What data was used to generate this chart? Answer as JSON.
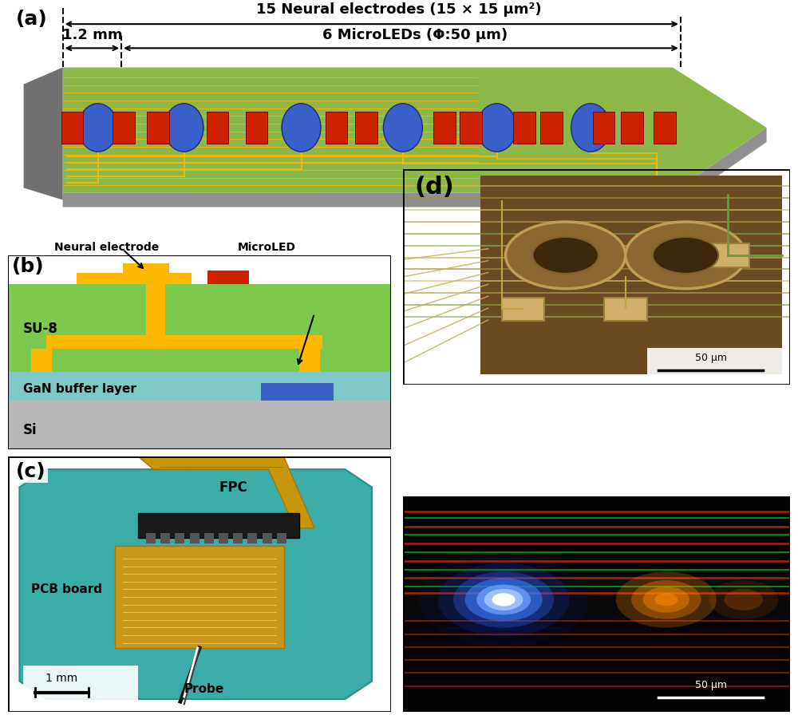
{
  "panel_a_label": "(a)",
  "panel_b_label": "(b)",
  "panel_c_label": "(c)",
  "panel_d_label": "(d)",
  "dim_text1": "15 Neural electrodes (15 × 15 μm²)",
  "dim_text2": "1.2 mm    6 MicroLEDs (Φ:50 μm)",
  "b_su8": "SU-8",
  "b_gan": "GaN buffer layer",
  "b_si": "Si",
  "b_neural": "Neural electrode",
  "b_microled": "MicroLED",
  "c_fpc": "FPC",
  "c_pcb": "PCB board",
  "c_probe": "Probe",
  "c_scale": "1 mm",
  "d_scale": "50 μm",
  "probe_color": "#8cb84a",
  "probe_side_color": "#a0a0a0",
  "wire_color": "#FFB800",
  "led_color": "#3a5fc8",
  "electrode_color": "#cc2200",
  "su8_color": "#FFB800",
  "gan_color": "#7ec8c8",
  "green_layer_color": "#7dc94e",
  "si_color": "#b8b8b8",
  "bg_color": "#ffffff",
  "label_fontsize": 18,
  "annotation_fontsize": 13
}
